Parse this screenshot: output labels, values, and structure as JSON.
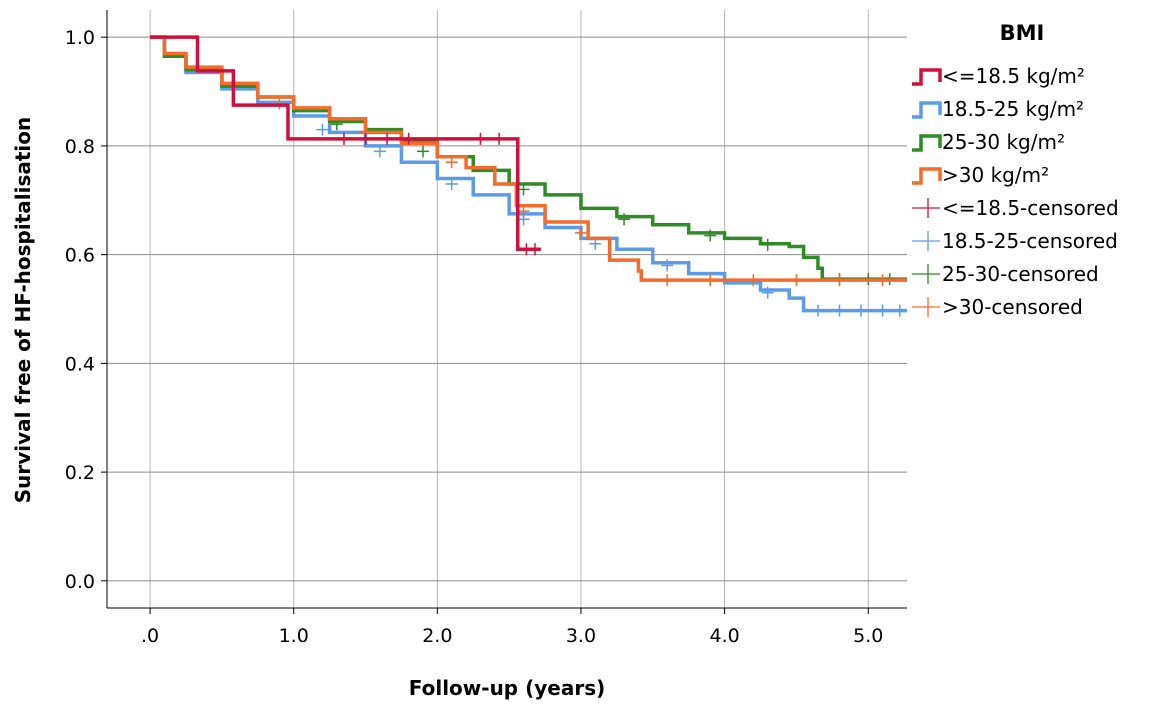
{
  "chart_data": {
    "type": "line",
    "subtype": "kaplan-meier-step",
    "xlabel": "Follow-up (years)",
    "ylabel": "Survival free of HF-hospitalisation",
    "xlim": [
      -0.3,
      5.27
    ],
    "ylim": [
      -0.05,
      1.05
    ],
    "x_ticks": [
      0,
      1,
      2,
      3,
      4,
      5
    ],
    "x_tick_labels": [
      ".0",
      "1.0",
      "2.0",
      "3.0",
      "4.0",
      "5.0"
    ],
    "y_ticks": [
      0,
      0.2,
      0.4,
      0.6,
      0.8,
      1.0
    ],
    "y_tick_labels": [
      "0.0",
      "0.2",
      "0.4",
      "0.6",
      "0.8",
      "1.0"
    ],
    "grid": true,
    "legend": {
      "title": "BMI",
      "placement": "right",
      "entries": [
        {
          "label": "<=18.5 kg/m²",
          "color": "#D0103A",
          "kind": "line"
        },
        {
          "label": "18.5-25 kg/m²",
          "color": "#5B9BE8",
          "kind": "line"
        },
        {
          "label": "25-30 kg/m²",
          "color": "#2E8B26",
          "kind": "line"
        },
        {
          "label": ">30 kg/m²",
          "color": "#F36C2A",
          "kind": "line"
        },
        {
          "label": "<=18.5-censored",
          "color": "#D0103A",
          "kind": "censor"
        },
        {
          "label": "18.5-25-censored",
          "color": "#5B9BE8",
          "kind": "censor"
        },
        {
          "label": "25-30-censored",
          "color": "#2E8B26",
          "kind": "censor"
        },
        {
          "label": ">30-censored",
          "color": ">30-censored-color",
          "kind": "censor"
        }
      ]
    },
    "series": [
      {
        "name": "<=18.5 kg/m²",
        "color": "#D0103A",
        "points": [
          [
            0,
            1.0
          ],
          [
            0.33,
            1.0
          ],
          [
            0.33,
            0.938
          ],
          [
            0.58,
            0.938
          ],
          [
            0.58,
            0.875
          ],
          [
            0.96,
            0.875
          ],
          [
            0.96,
            0.813
          ],
          [
            2.56,
            0.813
          ],
          [
            2.56,
            0.61
          ],
          [
            2.72,
            0.61
          ]
        ],
        "censored": [
          [
            1.35,
            0.813
          ],
          [
            1.5,
            0.813
          ],
          [
            1.65,
            0.813
          ],
          [
            1.8,
            0.813
          ],
          [
            2.3,
            0.813
          ],
          [
            2.43,
            0.813
          ],
          [
            2.62,
            0.61
          ],
          [
            2.68,
            0.61
          ]
        ]
      },
      {
        "name": "18.5-25 kg/m²",
        "color": "#5B9BE8",
        "points": [
          [
            0,
            1.0
          ],
          [
            0.1,
            0.965
          ],
          [
            0.25,
            0.935
          ],
          [
            0.5,
            0.905
          ],
          [
            0.75,
            0.88
          ],
          [
            1.0,
            0.855
          ],
          [
            1.25,
            0.825
          ],
          [
            1.5,
            0.8
          ],
          [
            1.75,
            0.77
          ],
          [
            2.0,
            0.74
          ],
          [
            2.25,
            0.71
          ],
          [
            2.5,
            0.675
          ],
          [
            2.75,
            0.65
          ],
          [
            3.0,
            0.63
          ],
          [
            3.25,
            0.61
          ],
          [
            3.5,
            0.585
          ],
          [
            3.75,
            0.565
          ],
          [
            4.0,
            0.548
          ],
          [
            4.25,
            0.535
          ],
          [
            4.45,
            0.52
          ],
          [
            4.55,
            0.497
          ],
          [
            5.27,
            0.497
          ]
        ],
        "censored": [
          [
            1.2,
            0.83
          ],
          [
            1.6,
            0.79
          ],
          [
            2.1,
            0.73
          ],
          [
            2.6,
            0.665
          ],
          [
            3.1,
            0.62
          ],
          [
            3.6,
            0.58
          ],
          [
            4.3,
            0.53
          ],
          [
            4.65,
            0.497
          ],
          [
            4.8,
            0.497
          ],
          [
            4.95,
            0.497
          ],
          [
            5.1,
            0.497
          ],
          [
            5.22,
            0.497
          ]
        ]
      },
      {
        "name": "25-30 kg/m²",
        "color": "#2E8B26",
        "points": [
          [
            0,
            1.0
          ],
          [
            0.1,
            0.965
          ],
          [
            0.25,
            0.94
          ],
          [
            0.5,
            0.91
          ],
          [
            0.75,
            0.89
          ],
          [
            1.0,
            0.865
          ],
          [
            1.25,
            0.845
          ],
          [
            1.5,
            0.83
          ],
          [
            1.75,
            0.81
          ],
          [
            2.0,
            0.78
          ],
          [
            2.25,
            0.755
          ],
          [
            2.5,
            0.73
          ],
          [
            2.75,
            0.71
          ],
          [
            3.0,
            0.685
          ],
          [
            3.25,
            0.67
          ],
          [
            3.5,
            0.655
          ],
          [
            3.75,
            0.64
          ],
          [
            4.0,
            0.63
          ],
          [
            4.25,
            0.62
          ],
          [
            4.45,
            0.615
          ],
          [
            4.55,
            0.595
          ],
          [
            4.65,
            0.575
          ],
          [
            4.68,
            0.555
          ],
          [
            5.27,
            0.555
          ]
        ],
        "censored": [
          [
            1.3,
            0.84
          ],
          [
            1.9,
            0.79
          ],
          [
            2.6,
            0.72
          ],
          [
            3.3,
            0.665
          ],
          [
            3.9,
            0.635
          ],
          [
            4.3,
            0.618
          ],
          [
            4.8,
            0.555
          ],
          [
            5.0,
            0.555
          ],
          [
            5.15,
            0.555
          ]
        ]
      },
      {
        "name": ">30 kg/m²",
        "color": "#F36C2A",
        "points": [
          [
            0,
            1.0
          ],
          [
            0.1,
            0.97
          ],
          [
            0.25,
            0.945
          ],
          [
            0.5,
            0.915
          ],
          [
            0.75,
            0.89
          ],
          [
            1.0,
            0.87
          ],
          [
            1.25,
            0.85
          ],
          [
            1.5,
            0.825
          ],
          [
            1.75,
            0.805
          ],
          [
            2.0,
            0.78
          ],
          [
            2.2,
            0.76
          ],
          [
            2.4,
            0.73
          ],
          [
            2.55,
            0.69
          ],
          [
            2.75,
            0.66
          ],
          [
            3.05,
            0.63
          ],
          [
            3.2,
            0.59
          ],
          [
            3.4,
            0.57
          ],
          [
            3.42,
            0.553
          ],
          [
            5.27,
            0.553
          ]
        ],
        "censored": [
          [
            0.9,
            0.878
          ],
          [
            1.5,
            0.825
          ],
          [
            2.1,
            0.77
          ],
          [
            2.6,
            0.68
          ],
          [
            3.0,
            0.64
          ],
          [
            3.6,
            0.553
          ],
          [
            3.9,
            0.553
          ],
          [
            4.2,
            0.553
          ],
          [
            4.5,
            0.553
          ],
          [
            4.8,
            0.553
          ],
          [
            5.1,
            0.553
          ]
        ]
      }
    ]
  }
}
